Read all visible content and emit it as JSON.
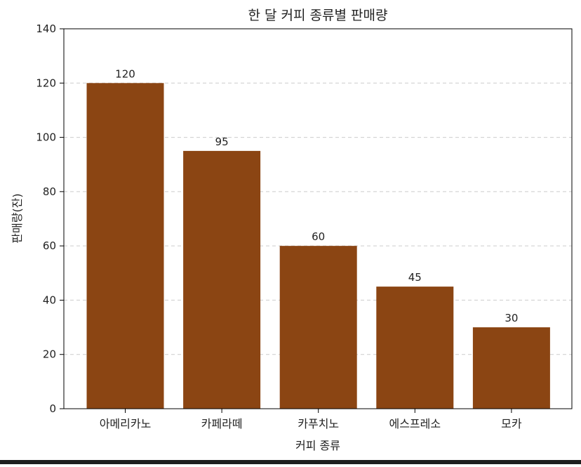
{
  "chart_data": {
    "type": "bar",
    "title": "한 달 커피 종류별 판매량",
    "xlabel": "커피 종류",
    "ylabel": "판매량(잔)",
    "categories": [
      "아메리카노",
      "카페라떼",
      "카푸치노",
      "에스프레소",
      "모카"
    ],
    "values": [
      120,
      95,
      60,
      45,
      30
    ],
    "data_labels": [
      "120",
      "95",
      "60",
      "45",
      "30"
    ],
    "ylim": [
      0,
      140
    ],
    "yticks": [
      0,
      20,
      40,
      60,
      80,
      100,
      120,
      140
    ],
    "grid": "y-dashed",
    "bar_color": "#8B4513",
    "grid_color": "#cccccc"
  }
}
